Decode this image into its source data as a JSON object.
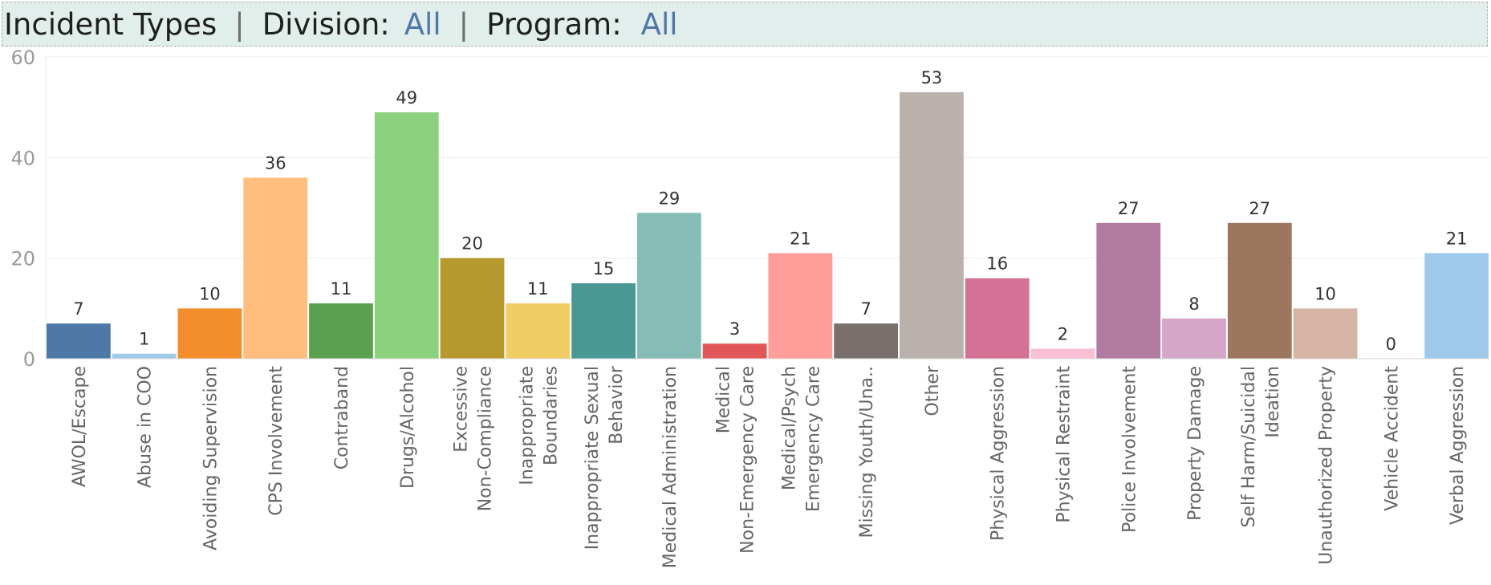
{
  "header": {
    "title": "Incident Types",
    "separator": "|",
    "division_label": "Division:",
    "division_value": "All",
    "program_label": "Program:",
    "program_value": "All"
  },
  "chart_data": {
    "type": "bar",
    "title": "",
    "xlabel": "",
    "ylabel": "",
    "ylim": [
      0,
      60
    ],
    "yticks": [
      0,
      20,
      40,
      60
    ],
    "grid": true,
    "data_labels": true,
    "bars": [
      {
        "label": "AWOL/Escape",
        "value": 7,
        "color": "#4e79a7"
      },
      {
        "label": "Abuse in COO",
        "value": 1,
        "color": "#a0cbe8"
      },
      {
        "label": "Avoiding Supervision",
        "value": 10,
        "color": "#f28e2b"
      },
      {
        "label": "CPS Involvement",
        "value": 36,
        "color": "#ffbe7d"
      },
      {
        "label": "Contraband",
        "value": 11,
        "color": "#59a14f"
      },
      {
        "label": "Drugs/Alcohol",
        "value": 49,
        "color": "#8cd17d"
      },
      {
        "label": "Excessive Non-Compliance",
        "value": 20,
        "color": "#b6992d"
      },
      {
        "label": "Inappropriate Boundaries",
        "value": 11,
        "color": "#f1ce63"
      },
      {
        "label": "Inappropriate Sexual Behavior",
        "value": 15,
        "color": "#499894"
      },
      {
        "label": "Medical Administration",
        "value": 29,
        "color": "#86bcb6"
      },
      {
        "label": "Medical Non-Emergency Care",
        "value": 3,
        "color": "#e15759"
      },
      {
        "label": "Medical/Psych Emergency Care",
        "value": 21,
        "color": "#ff9d9a"
      },
      {
        "label": "Missing Youth/Una..",
        "value": 7,
        "color": "#79706e"
      },
      {
        "label": "Other",
        "value": 53,
        "color": "#bab0ac"
      },
      {
        "label": "Physical Aggression",
        "value": 16,
        "color": "#d37295"
      },
      {
        "label": "Physical Restraint",
        "value": 2,
        "color": "#fabfd2"
      },
      {
        "label": "Police Involvement",
        "value": 27,
        "color": "#b07aa1"
      },
      {
        "label": "Property Damage",
        "value": 8,
        "color": "#d4a6c8"
      },
      {
        "label": "Self Harm/Suicidal Ideation",
        "value": 27,
        "color": "#9d7660"
      },
      {
        "label": "Unauthorized Property",
        "value": 10,
        "color": "#d7b5a6"
      },
      {
        "label": "Vehicle Accident",
        "value": 0,
        "color": "#e8e8e8"
      },
      {
        "label": "Verbal Aggression",
        "value": 21,
        "color": "#9fc9ea"
      }
    ],
    "wrapped_labels": [
      [
        "AWOL/Escape"
      ],
      [
        "Abuse in COO"
      ],
      [
        "Avoiding Supervision"
      ],
      [
        "CPS Involvement"
      ],
      [
        "Contraband"
      ],
      [
        "Drugs/Alcohol"
      ],
      [
        "Excessive",
        "Non-Compliance"
      ],
      [
        "Inappropriate",
        "Boundaries"
      ],
      [
        "Inappropriate Sexual",
        "Behavior"
      ],
      [
        "Medical Administration"
      ],
      [
        "Medical",
        "Non-Emergency Care"
      ],
      [
        "Medical/Psych",
        "Emergency Care"
      ],
      [
        "Missing Youth/Una.."
      ],
      [
        "Other"
      ],
      [
        "Physical Aggression"
      ],
      [
        "Physical Restraint"
      ],
      [
        "Police Involvement"
      ],
      [
        "Property Damage"
      ],
      [
        "Self Harm/Suicidal",
        "Ideation"
      ],
      [
        "Unauthorized Property"
      ],
      [
        "Vehicle Accident"
      ],
      [
        "Verbal Aggression"
      ]
    ]
  }
}
